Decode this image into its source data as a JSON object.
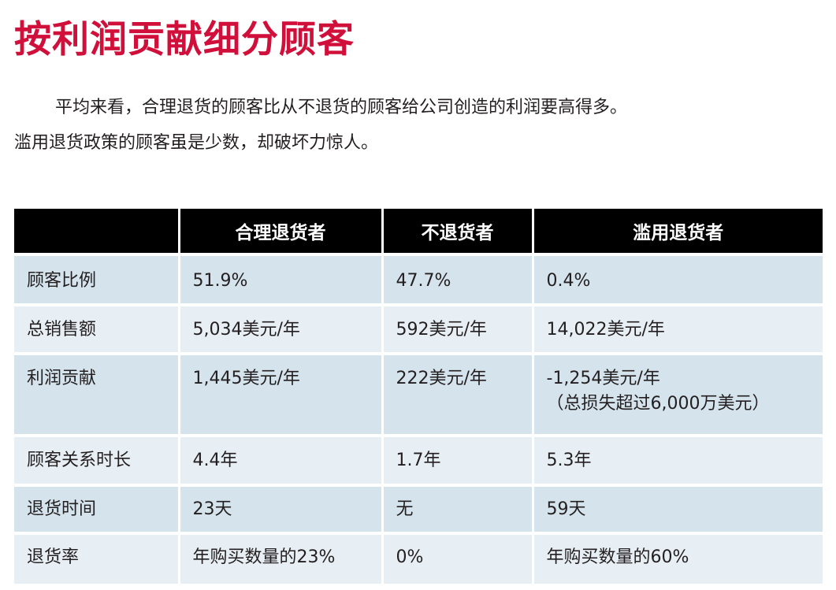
{
  "title": "按利润贡献细分顾客",
  "title_color": "#d0103a",
  "intro": {
    "line1": "平均来看，合理退货的顾客比从不退货的顾客给公司创造的利润要高得多。",
    "line2": "滥用退货政策的顾客虽是少数，却破坏力惊人。"
  },
  "table": {
    "headers": [
      "",
      "合理退货者",
      "不退货者",
      "滥用退货者"
    ],
    "rows": [
      {
        "label": "顾客比例",
        "values": [
          "51.9%",
          "47.7%",
          "0.4%"
        ]
      },
      {
        "label": "总销售额",
        "values": [
          "5,034美元/年",
          "592美元/年",
          "14,022美元/年"
        ]
      },
      {
        "label": "利润贡献",
        "values": [
          "1,445美元/年",
          "222美元/年",
          "-1,254美元/年"
        ],
        "note": "（总损失超过6,000万美元）"
      },
      {
        "label": "顾客关系时长",
        "values": [
          "4.4年",
          "1.7年",
          "5.3年"
        ]
      },
      {
        "label": "退货时间",
        "values": [
          "23天",
          "无",
          "59天"
        ]
      },
      {
        "label": "退货率",
        "values": [
          "年购买数量的23%",
          "0%",
          "年购买数量的60%"
        ]
      }
    ]
  }
}
